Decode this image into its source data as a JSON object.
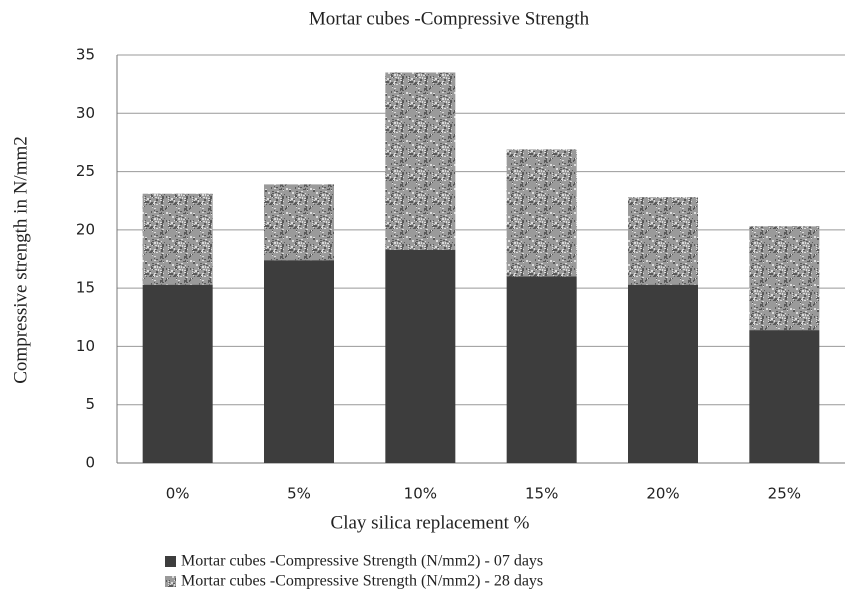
{
  "chart_data": {
    "type": "stacked_bar",
    "title": "Mortar cubes -Compressive Strength",
    "x_label": "Clay silica replacement %",
    "y_label": "Compressive strength in N/mm2",
    "categories": [
      "0%",
      "5%",
      "10%",
      "15%",
      "20%",
      "25%"
    ],
    "series": [
      {
        "name": "Mortar cubes -Compressive Strength (N/mm2) - 07 days",
        "color": "#3d3d3d",
        "values": [
          15.3,
          17.4,
          18.3,
          16.0,
          15.3,
          11.4
        ]
      },
      {
        "name": "Mortar cubes -Compressive Strength (N/mm2) - 28 days",
        "color": "#9a9a9a",
        "values": [
          7.8,
          6.5,
          15.2,
          10.9,
          7.5,
          8.9
        ]
      }
    ],
    "ylim": [
      0,
      35
    ],
    "yticks": [
      0,
      5,
      10,
      15,
      20,
      25,
      30,
      35
    ],
    "grid": true,
    "legend": "bottom"
  }
}
